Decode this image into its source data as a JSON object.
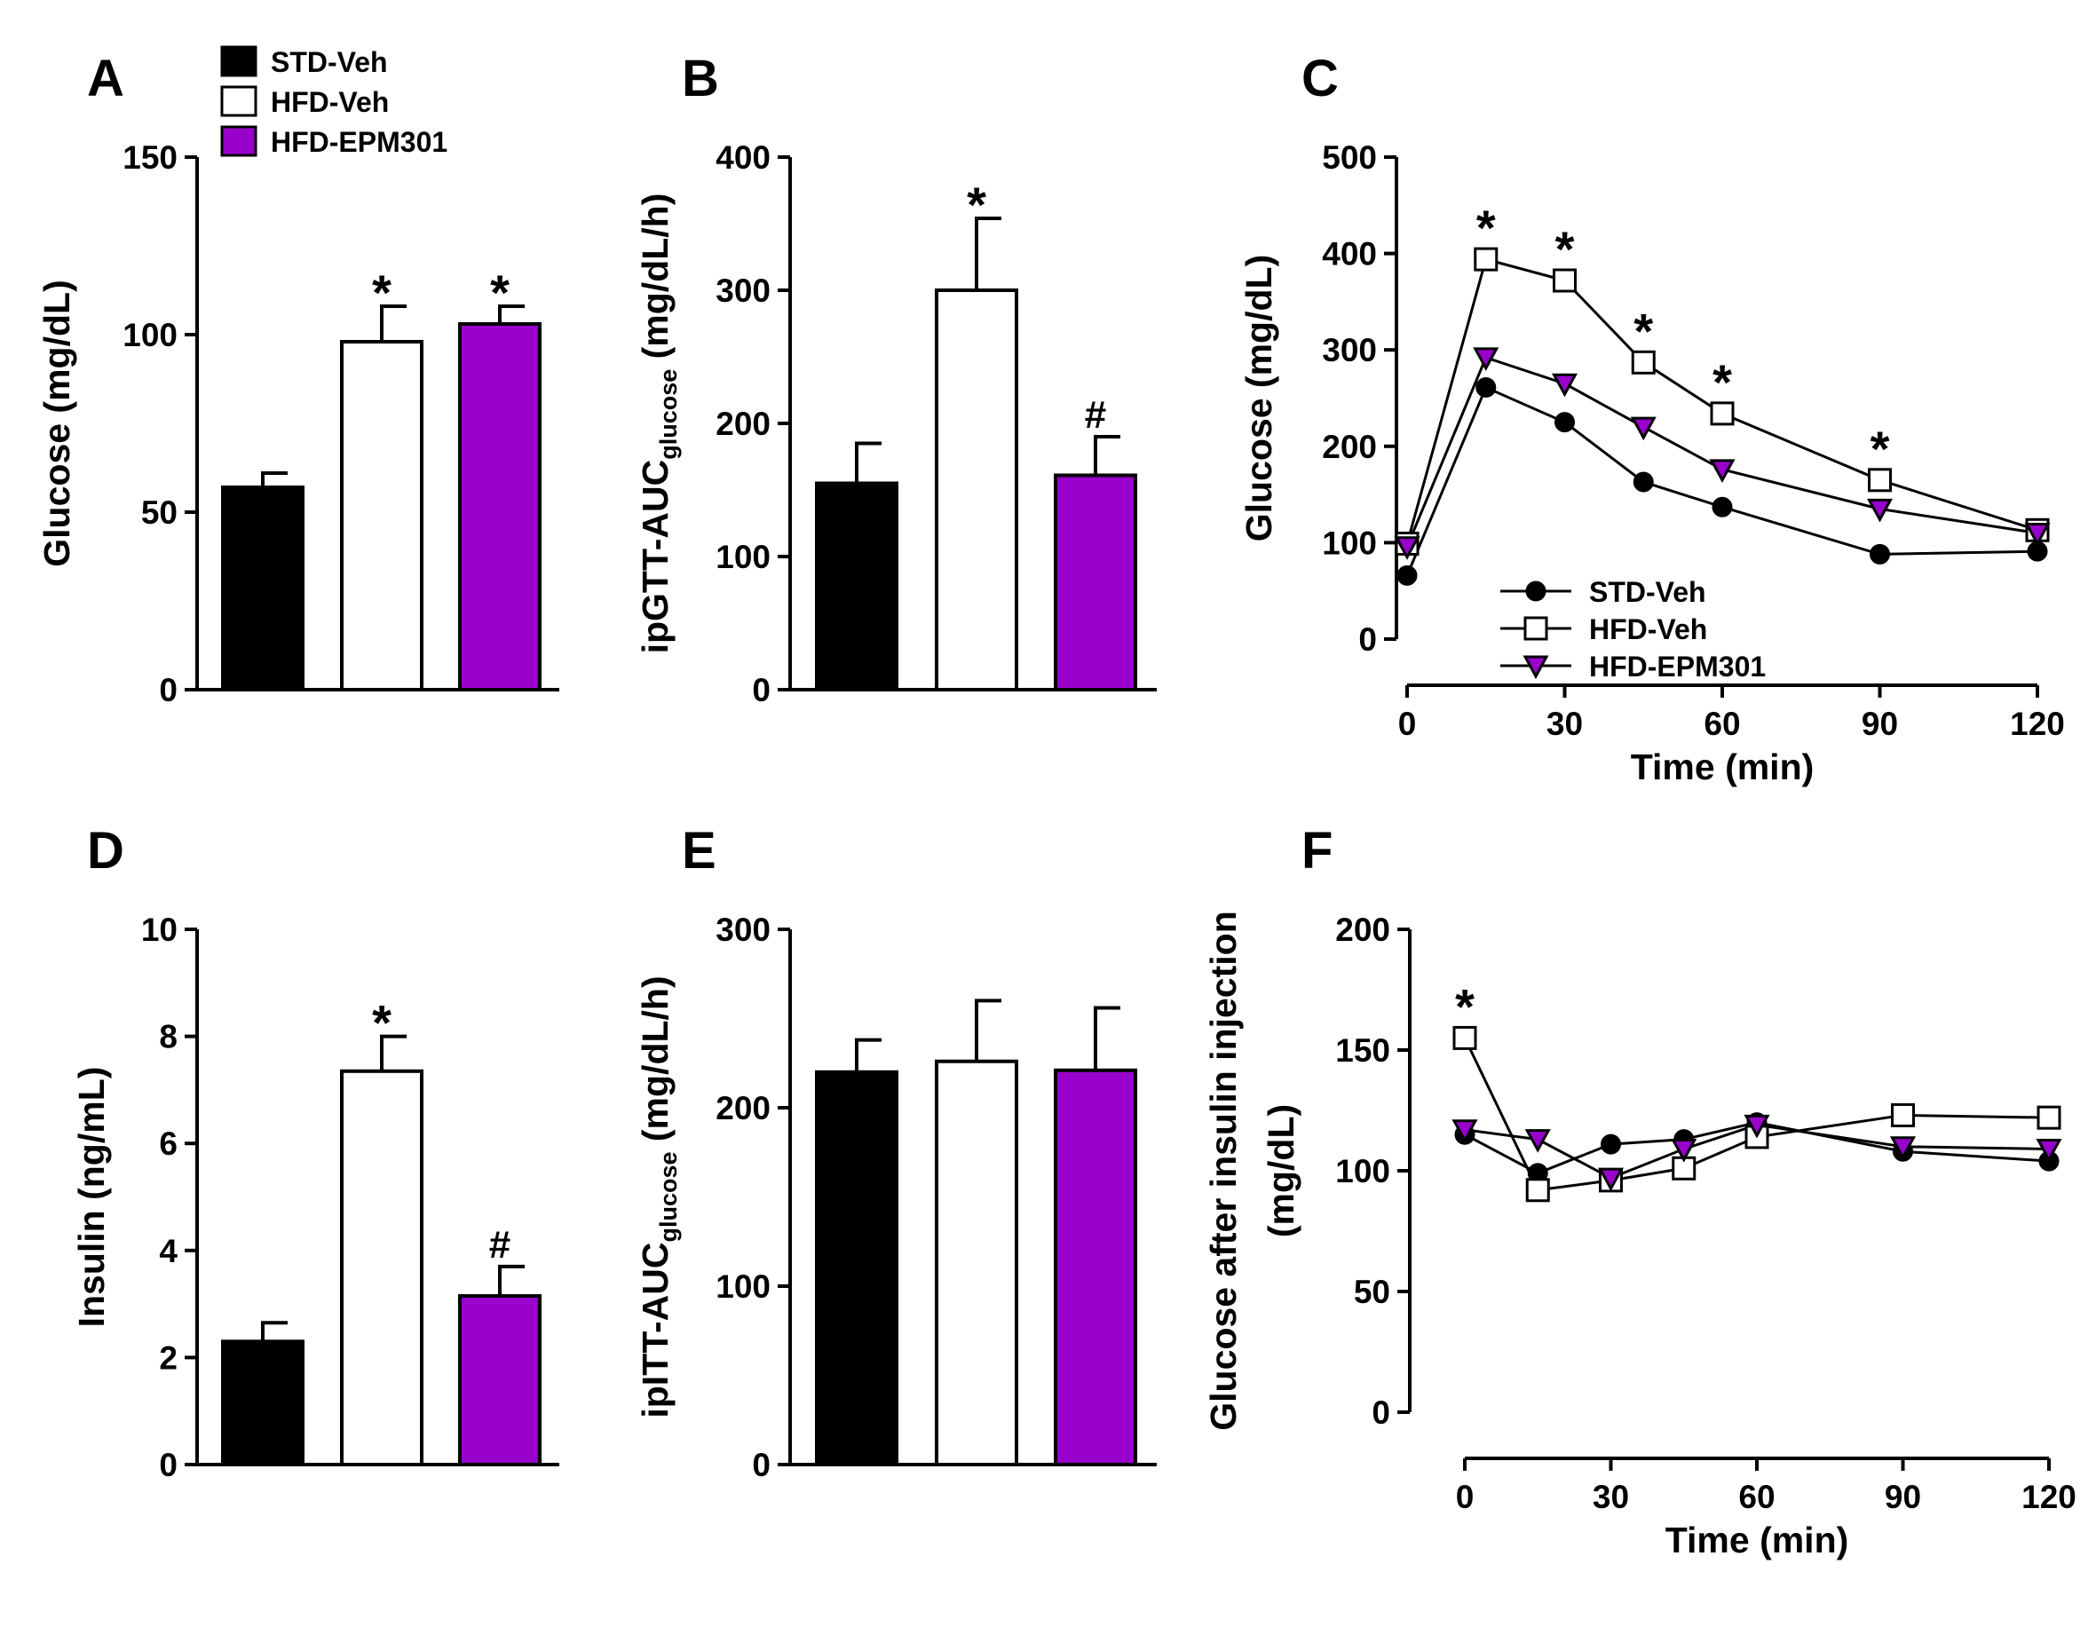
{
  "legend": {
    "entries": [
      {
        "name": "STD-Veh",
        "fill": "#000000",
        "marker": "circle"
      },
      {
        "name": "HFD-Veh",
        "fill": "#ffffff",
        "marker": "square"
      },
      {
        "name": "HFD-EPM301",
        "fill": "#9900cc",
        "marker": "triangle-down"
      }
    ]
  },
  "chart_data": [
    {
      "id": "A",
      "letter": "A",
      "type": "bar",
      "ylabel": "Glucose (mg/dL)",
      "ylim": [
        0,
        150
      ],
      "yticks": [
        0,
        50,
        100,
        150
      ],
      "categories": [
        "STD-Veh",
        "HFD-Veh",
        "HFD-EPM301"
      ],
      "values": [
        57,
        98,
        103
      ],
      "errors": [
        4,
        10,
        5
      ],
      "annotations": [
        "",
        "*",
        "*"
      ]
    },
    {
      "id": "B",
      "letter": "B",
      "type": "bar",
      "ylabel_main": "ipGTT-AUC",
      "ylabel_sub": "glucose",
      "ylabel_tail": " (mg/dL/h)",
      "ylim": [
        0,
        400
      ],
      "yticks": [
        0,
        100,
        200,
        300,
        400
      ],
      "categories": [
        "STD-Veh",
        "HFD-Veh",
        "HFD-EPM301"
      ],
      "values": [
        155,
        300,
        161
      ],
      "errors": [
        30,
        54,
        29
      ],
      "annotations": [
        "",
        "*",
        "#"
      ]
    },
    {
      "id": "C",
      "letter": "C",
      "type": "line",
      "xlabel": "Time (min)",
      "ylabel": "Glucose (mg/dL)",
      "xlim": [
        0,
        120
      ],
      "xticks": [
        0,
        30,
        60,
        90,
        120
      ],
      "ylim": [
        0,
        500
      ],
      "yticks": [
        0,
        100,
        200,
        300,
        400,
        500
      ],
      "x": [
        0,
        15,
        30,
        45,
        60,
        90,
        120
      ],
      "series": [
        {
          "name": "STD-Veh",
          "values": [
            66,
            261,
            225,
            163,
            137,
            88,
            91
          ]
        },
        {
          "name": "HFD-Veh",
          "values": [
            99,
            394,
            372,
            287,
            234,
            165,
            113
          ]
        },
        {
          "name": "HFD-EPM301",
          "values": [
            96,
            292,
            265,
            220,
            176,
            135,
            110
          ]
        }
      ],
      "annotations": [
        {
          "x": 15,
          "text": "*"
        },
        {
          "x": 30,
          "text": "*"
        },
        {
          "x": 45,
          "text": "*"
        },
        {
          "x": 60,
          "text": "*"
        },
        {
          "x": 90,
          "text": "*"
        }
      ]
    },
    {
      "id": "D",
      "letter": "D",
      "type": "bar",
      "ylabel": "Insulin (ng/mL)",
      "ylim": [
        0,
        10
      ],
      "yticks": [
        0,
        2,
        4,
        6,
        8,
        10
      ],
      "categories": [
        "STD-Veh",
        "HFD-Veh",
        "HFD-EPM301"
      ],
      "values": [
        2.3,
        7.35,
        3.15
      ],
      "errors": [
        0.35,
        0.65,
        0.55
      ],
      "annotations": [
        "",
        "*",
        "#"
      ]
    },
    {
      "id": "E",
      "letter": "E",
      "type": "bar",
      "ylabel_main": "ipITT-AUC",
      "ylabel_sub": "glucose",
      "ylabel_tail": " (mg/dL/h)",
      "ylim": [
        0,
        300
      ],
      "yticks": [
        0,
        100,
        200,
        300
      ],
      "categories": [
        "STD-Veh",
        "HFD-Veh",
        "HFD-EPM301"
      ],
      "values": [
        220,
        226,
        221
      ],
      "errors": [
        18,
        34,
        35
      ],
      "annotations": [
        "",
        "",
        ""
      ]
    },
    {
      "id": "F",
      "letter": "F",
      "type": "line",
      "xlabel": "Time (min)",
      "ylabel": "Glucose after insulin injection",
      "ylabel2": "(mg/dL)",
      "xlim": [
        0,
        120
      ],
      "xticks": [
        0,
        30,
        60,
        90,
        120
      ],
      "ylim": [
        0,
        200
      ],
      "yticks": [
        0,
        50,
        100,
        150,
        200
      ],
      "x": [
        0,
        15,
        30,
        45,
        60,
        90,
        120
      ],
      "series": [
        {
          "name": "STD-Veh",
          "values": [
            115,
            99,
            111,
            113,
            120,
            108,
            104
          ]
        },
        {
          "name": "HFD-Veh",
          "values": [
            155,
            92,
            96,
            101,
            114,
            123,
            122
          ]
        },
        {
          "name": "HFD-EPM301",
          "values": [
            117,
            113,
            97,
            109,
            119,
            110,
            109
          ]
        }
      ],
      "annotations": [
        {
          "x": 0,
          "text": "*"
        }
      ]
    }
  ]
}
